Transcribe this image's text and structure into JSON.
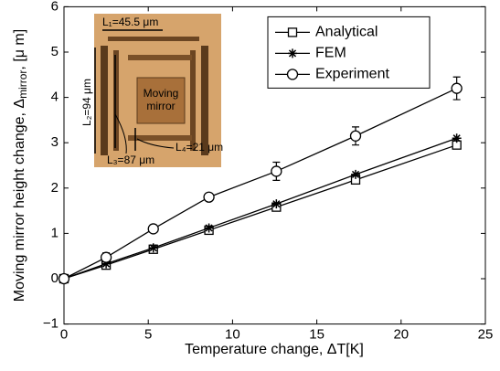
{
  "chart_data": {
    "type": "line",
    "x_label": "Temperature change, ΔT[K]",
    "y_label": [
      "Moving mirror height change, Δ",
      "mirror",
      ", [μ m]"
    ],
    "x": [
      0,
      2.5,
      5.3,
      8.6,
      12.6,
      17.3,
      23.3
    ],
    "series": [
      {
        "name": "Analytical",
        "color": "#000000",
        "marker": "square",
        "values": [
          0,
          0.3,
          0.65,
          1.07,
          1.58,
          2.18,
          2.95
        ]
      },
      {
        "name": "FEM",
        "color": "#000000",
        "marker": "star",
        "values": [
          0,
          0.33,
          0.68,
          1.12,
          1.65,
          2.3,
          3.1
        ]
      },
      {
        "name": "Experiment",
        "color": "#000000",
        "marker": "circle",
        "values": [
          0,
          0.47,
          1.1,
          1.8,
          2.37,
          3.15,
          4.2
        ],
        "errors": [
          0.05,
          0.1,
          0.08,
          0.06,
          0.2,
          0.2,
          0.25
        ]
      }
    ],
    "xlim": [
      0,
      25
    ],
    "xticks": [
      0,
      5,
      10,
      15,
      20,
      25
    ],
    "ylim": [
      -1,
      6
    ],
    "yticks": [
      {
        "value": -1,
        "label": "−1"
      },
      0,
      1,
      2,
      3,
      4,
      5,
      6
    ],
    "legend": "top-right",
    "inset_labels": {
      "l1": "L₁=45.5 μm",
      "l2": "L₂=94 μm",
      "l3": "L₃=87 μm",
      "l4": "L₄=21 μm",
      "mirror": [
        "Moving",
        "mirror"
      ]
    }
  }
}
